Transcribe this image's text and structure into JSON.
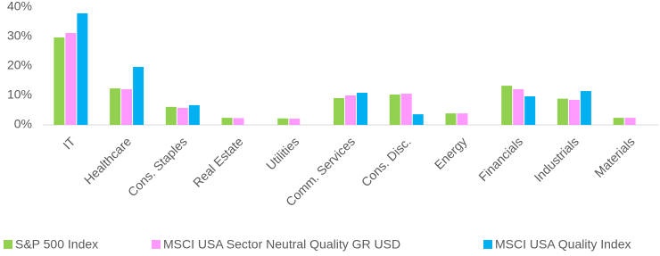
{
  "chart_data": {
    "type": "bar",
    "categories": [
      "IT",
      "Healthcare",
      "Cons. Staples",
      "Real Estate",
      "Utilities",
      "Comm. Services",
      "Cons. Disc.",
      "Energy",
      "Financials",
      "Industrials",
      "Materials"
    ],
    "series": [
      {
        "name": "S&P 500 Index",
        "color": "#92d050",
        "values": [
          29.7,
          12.4,
          6.1,
          2.4,
          2.2,
          9.1,
          10.3,
          3.9,
          13.3,
          8.9,
          2.4
        ]
      },
      {
        "name": "MSCI USA Sector Neutral Quality GR USD",
        "color": "#ff99ff",
        "values": [
          31.2,
          12.1,
          5.8,
          2.3,
          2.1,
          10.0,
          10.6,
          3.9,
          12.1,
          8.5,
          2.4
        ]
      },
      {
        "name": "MSCI USA Quality Index",
        "color": "#00b0f0",
        "values": [
          37.9,
          19.7,
          6.7,
          0,
          0,
          10.9,
          3.6,
          0,
          9.7,
          11.5,
          0
        ]
      }
    ],
    "ylim": [
      0,
      40
    ],
    "yticks": [
      {
        "value": 0,
        "label": "0%"
      },
      {
        "value": 10,
        "label": "10%"
      },
      {
        "value": 20,
        "label": "20%"
      },
      {
        "value": 30,
        "label": "30%"
      },
      {
        "value": 40,
        "label": "40%"
      }
    ],
    "grid": false,
    "legend": "bottom"
  }
}
